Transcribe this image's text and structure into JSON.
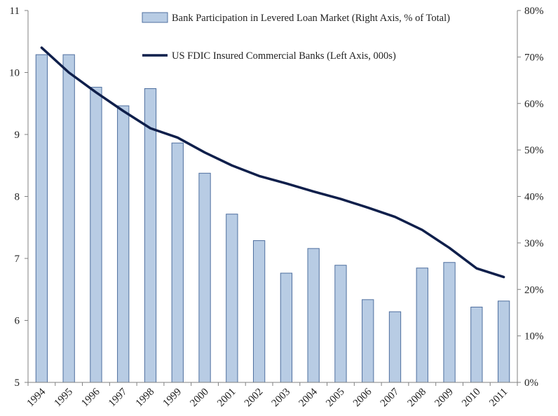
{
  "chart_data": {
    "type": "bar",
    "title": "",
    "categories": [
      "1994",
      "1995",
      "1996",
      "1997",
      "1998",
      "1999",
      "2000",
      "2001",
      "2002",
      "2003",
      "2004",
      "2005",
      "2006",
      "2007",
      "2008",
      "2009",
      "2010",
      "2011"
    ],
    "series": [
      {
        "name": "Bank Participation in Levered Loan Market (Right Axis, % of Total)",
        "type": "bar",
        "axis": "right",
        "values": [
          70.5,
          70.5,
          63.5,
          59.5,
          63.2,
          51.5,
          45,
          36.2,
          30.5,
          23.5,
          28.8,
          25.2,
          17.8,
          15.2,
          24.6,
          25.8,
          16.2,
          17.5
        ],
        "color": "#B8CCE4",
        "edge_color": "#4F6F9F"
      },
      {
        "name": "US FDIC Insured Commercial Banks (Left Axis, 000s)",
        "type": "line",
        "axis": "left",
        "values": [
          10.4,
          10.0,
          9.68,
          9.38,
          9.1,
          8.95,
          8.71,
          8.5,
          8.33,
          8.21,
          8.08,
          7.96,
          7.82,
          7.67,
          7.46,
          7.17,
          6.84,
          6.7
        ],
        "color": "#0F1F4B"
      }
    ],
    "left_axis": {
      "ylim": [
        5,
        11
      ],
      "ticks": [
        "5",
        "6",
        "7",
        "8",
        "9",
        "10",
        "11"
      ]
    },
    "right_axis": {
      "ylim": [
        0,
        80
      ],
      "ticks": [
        "0%",
        "10%",
        "20%",
        "30%",
        "40%",
        "50%",
        "60%",
        "70%",
        "80%"
      ]
    },
    "grid": false,
    "legend_position": "top-right"
  }
}
